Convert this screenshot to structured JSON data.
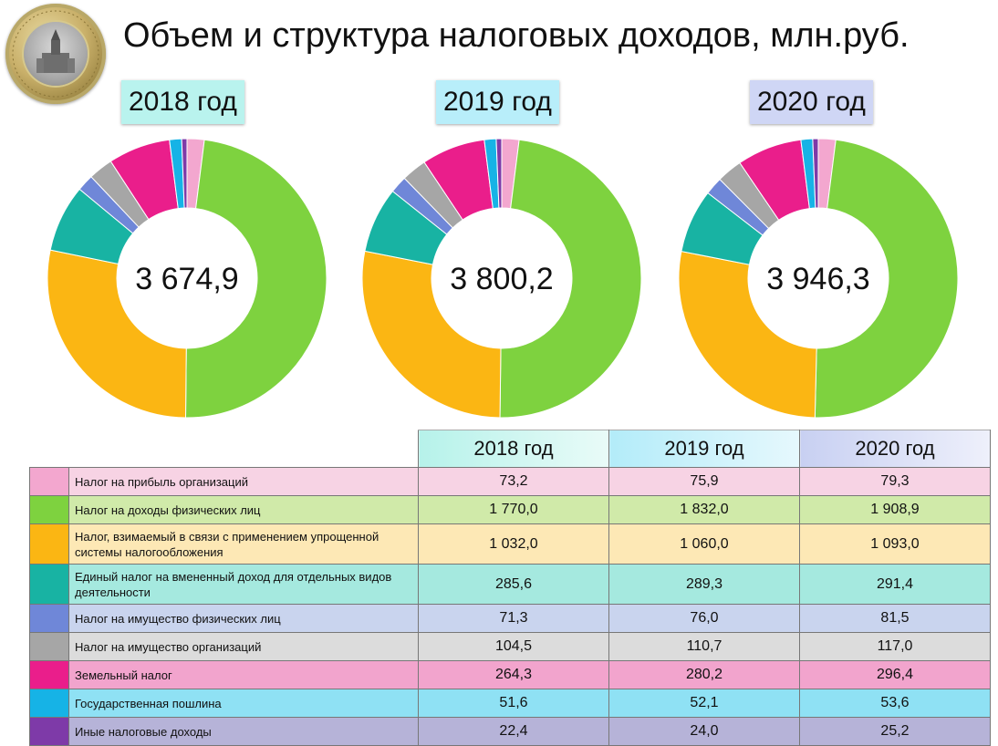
{
  "title": "Объем и структура налоговых доходов, млн.руб.",
  "years": [
    "2018 год",
    "2019 год",
    "2020 год"
  ],
  "year_label_colors": [
    "#b9f3ee",
    "#b8eefa",
    "#cfd6f5"
  ],
  "totals": [
    "3 674,9",
    "3 800,2",
    "3 946,3"
  ],
  "rows": [
    {
      "name": "Налог на прибыль организаций",
      "color": "#f3a7cf",
      "bg": "#f7d3e4",
      "values": [
        "73,2",
        "75,9",
        "79,3"
      ]
    },
    {
      "name": "Налог на доходы физических лиц",
      "color": "#7ed23f",
      "bg": "#d0eaa9",
      "values": [
        "1 770,0",
        "1 832,0",
        "1 908,9"
      ]
    },
    {
      "name": "Налог, взимаемый в связи с применением упрощенной системы налогообложения",
      "color": "#fbb613",
      "bg": "#fde8b5",
      "values": [
        "1 032,0",
        "1 060,0",
        "1 093,0"
      ]
    },
    {
      "name": "Единый налог на вмененный доход для отдельных видов деятельности",
      "color": "#18b3a3",
      "bg": "#a5e9df",
      "values": [
        "285,6",
        "289,3",
        "291,4"
      ]
    },
    {
      "name": "Налог на имущество физических лиц",
      "color": "#6f87d8",
      "bg": "#c9d4ee",
      "values": [
        "71,3",
        "76,0",
        "81,5"
      ]
    },
    {
      "name": "Налог на имущество организаций",
      "color": "#a6a6a6",
      "bg": "#dcdcdc",
      "values": [
        "104,5",
        "110,7",
        "117,0"
      ]
    },
    {
      "name": "Земельный налог",
      "color": "#ea1e8b",
      "bg": "#f2a4cd",
      "values": [
        "264,3",
        "280,2",
        "296,4"
      ]
    },
    {
      "name": "Государственная пошлина",
      "color": "#16b3e6",
      "bg": "#8fe1f4",
      "values": [
        "51,6",
        "52,1",
        "53,6"
      ]
    },
    {
      "name": "Иные налоговые доходы",
      "color": "#7e3aa8",
      "bg": "#b6b3d8",
      "values": [
        "22,4",
        "24,0",
        "25,2"
      ]
    }
  ],
  "chart_data": {
    "type": "donut",
    "title": "Объем и структура налоговых доходов, млн.руб.",
    "categories": [
      "Налог на прибыль организаций",
      "Налог на доходы физических лиц",
      "Налог, взимаемый в связи с применением упрощенной системы налогообложения",
      "Единый налог на вмененный доход для отдельных видов деятельности",
      "Налог на имущество физических лиц",
      "Налог на имущество организаций",
      "Земельный налог",
      "Государственная пошлина",
      "Иные налоговые доходы"
    ],
    "series": [
      {
        "name": "2018 год",
        "total": 3674.9,
        "values": [
          73.2,
          1770.0,
          1032.0,
          285.6,
          71.3,
          104.5,
          264.3,
          51.6,
          22.4
        ]
      },
      {
        "name": "2019 год",
        "total": 3800.2,
        "values": [
          75.9,
          1832.0,
          1060.0,
          289.3,
          76.0,
          110.7,
          280.2,
          52.1,
          24.0
        ]
      },
      {
        "name": "2020 год",
        "total": 3946.3,
        "values": [
          79.3,
          1908.9,
          1093.0,
          291.4,
          81.5,
          117.0,
          296.4,
          53.6,
          25.2
        ]
      }
    ]
  }
}
